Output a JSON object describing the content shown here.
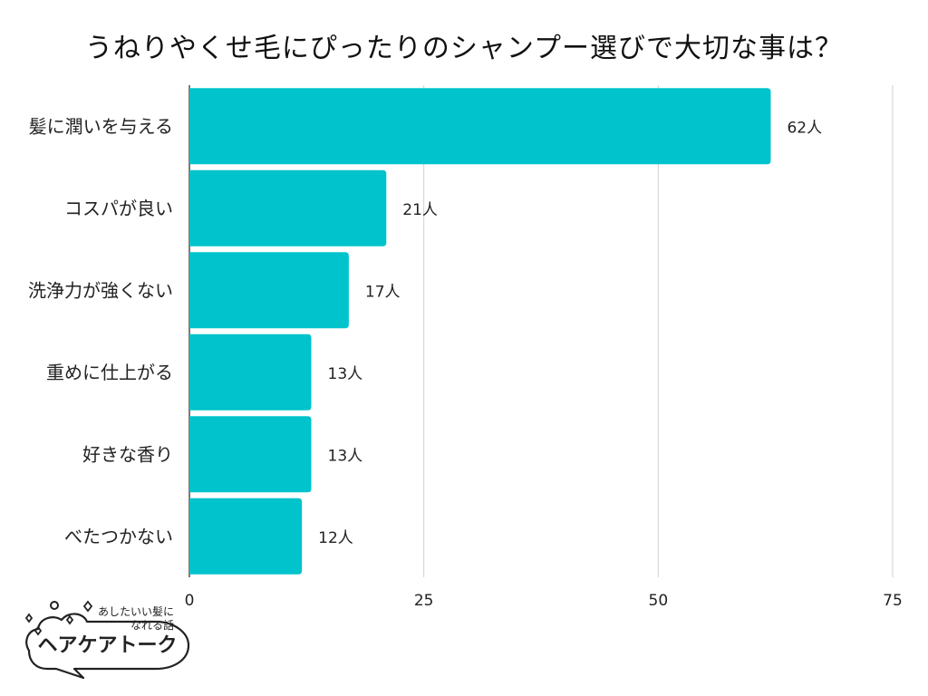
{
  "title": "うねりやくせ毛にぴったりのシャンプー選びで大切な事は？",
  "chart_data": {
    "type": "bar",
    "orientation": "horizontal",
    "categories": [
      "髪に潤いを与える",
      "コスパが良い",
      "洗浄力が強くない",
      "重めに仕上がる",
      "好きな香り",
      "べたつかない"
    ],
    "values": [
      62,
      21,
      17,
      13,
      13,
      12
    ],
    "value_suffix": "人",
    "xlim": [
      0,
      75
    ],
    "xticks": [
      0,
      25,
      50,
      75
    ],
    "grid": "vertical",
    "bar_color": "#00C3CC"
  },
  "logo": {
    "subtitle_line1": "あしたいい髪に",
    "subtitle_line2": "なれる話",
    "name": "ヘアケアトーク"
  }
}
